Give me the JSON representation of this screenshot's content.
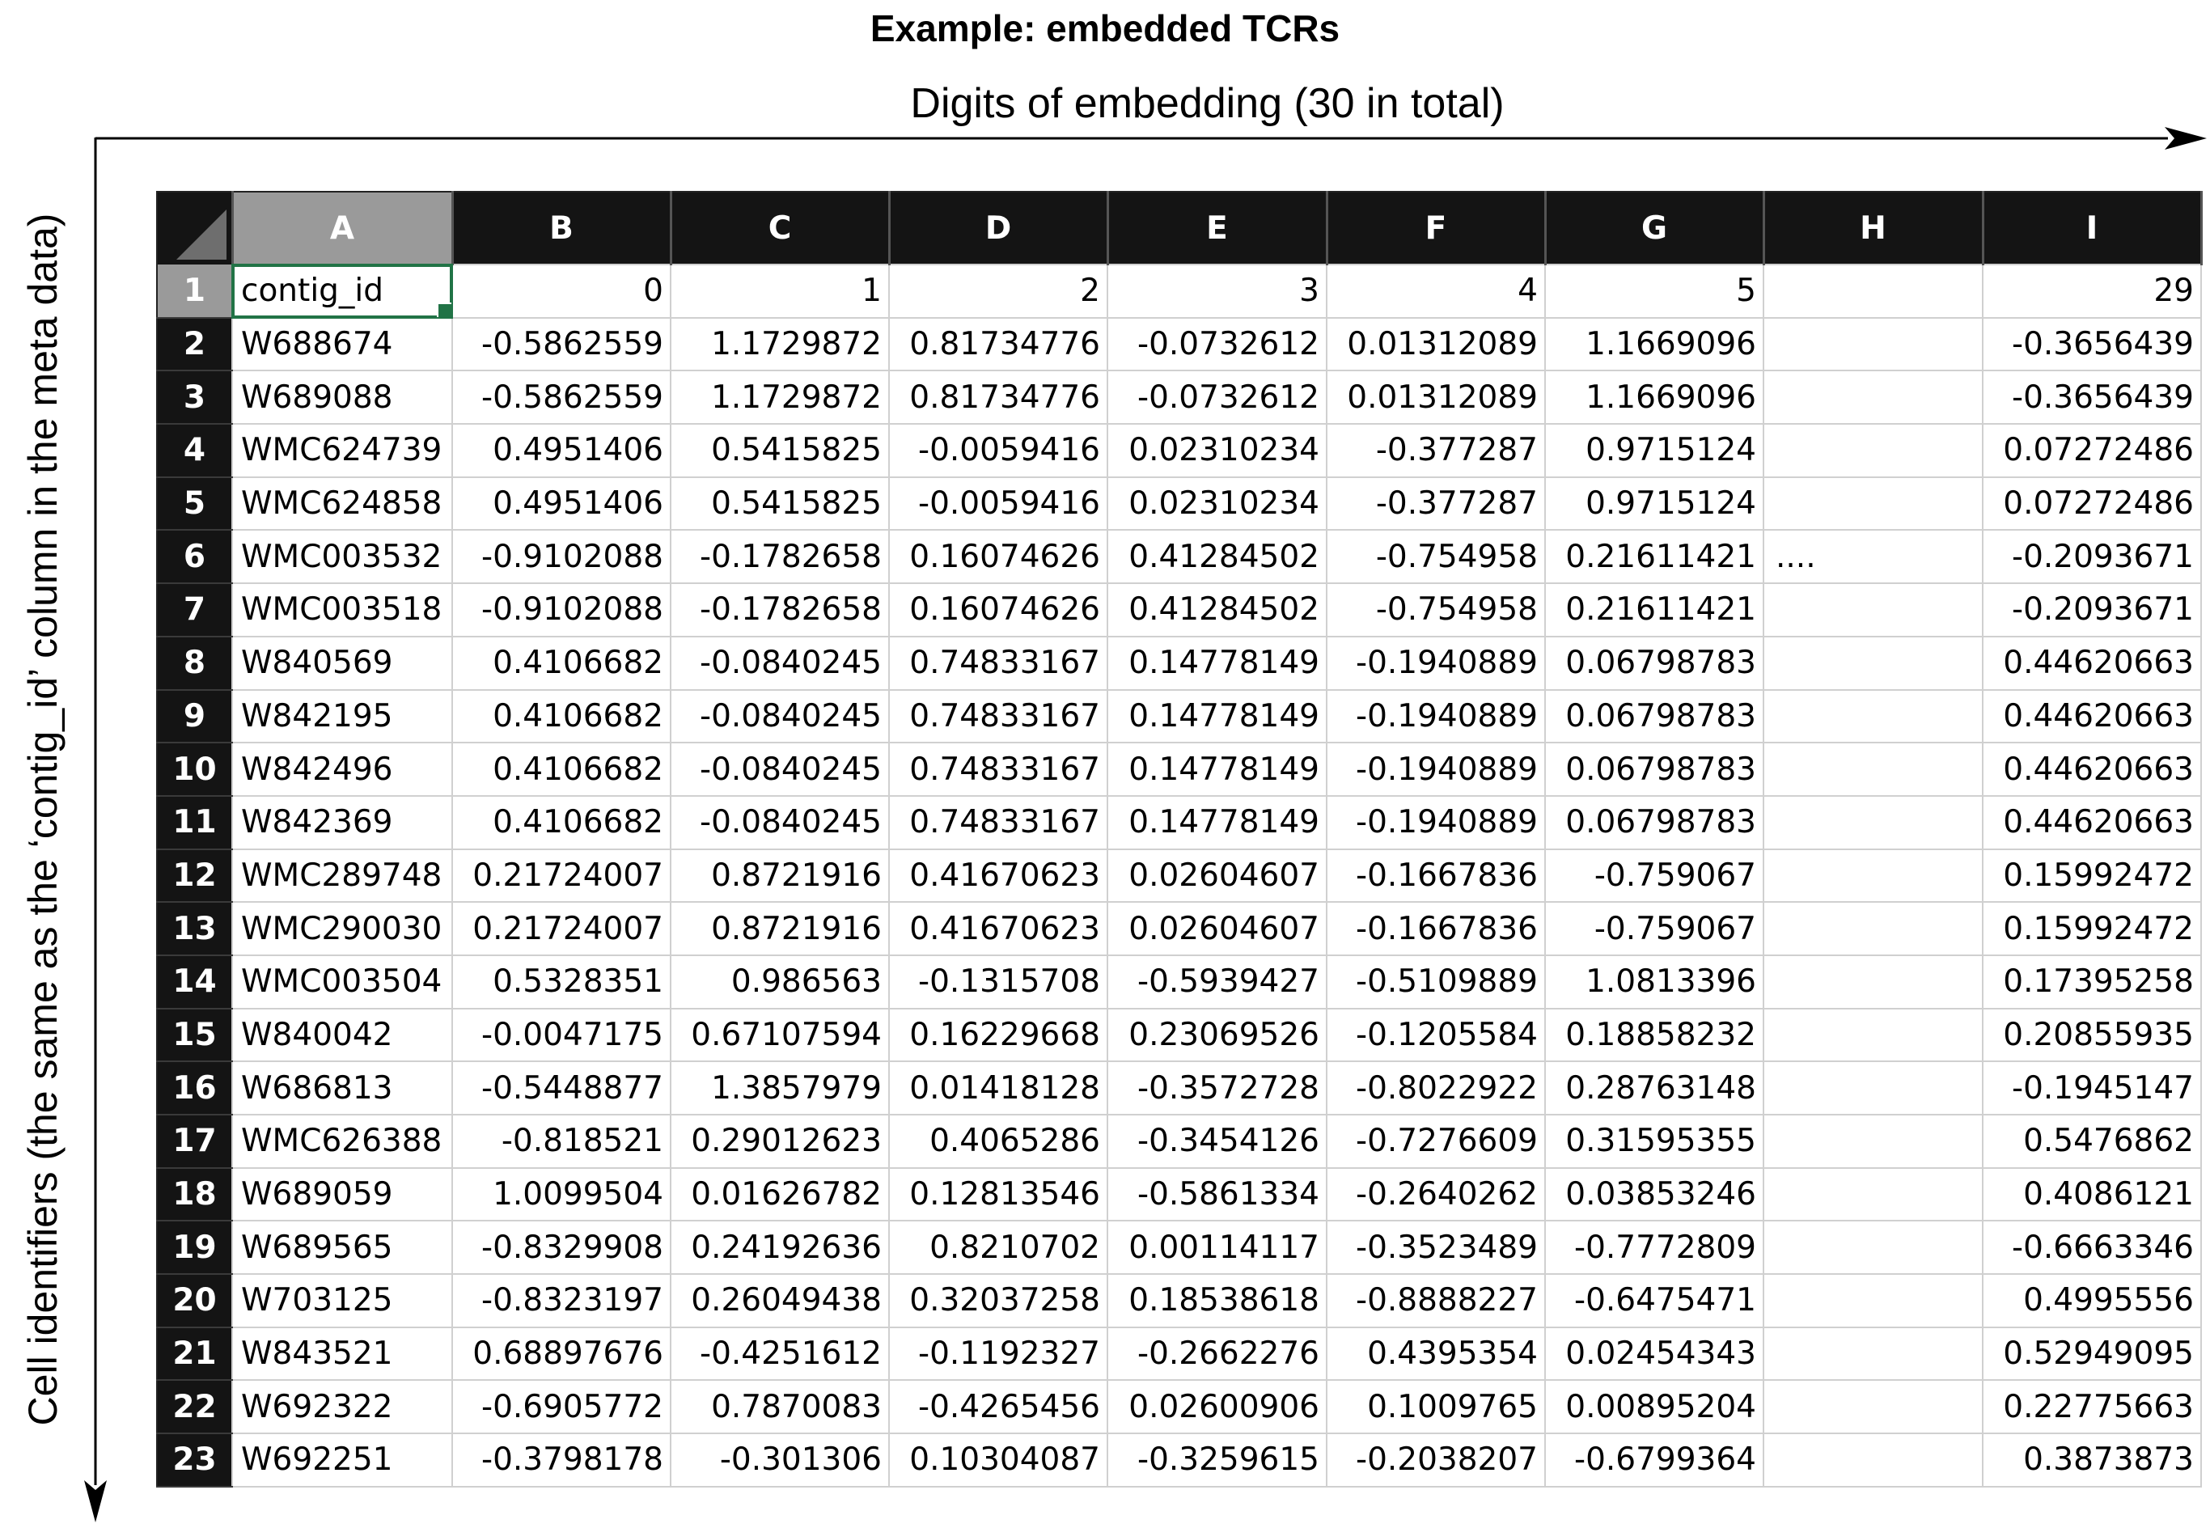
{
  "figure": {
    "title": "Example: embedded TCRs",
    "x_axis_label": "Digits of embedding (30 in total)",
    "y_axis_label": "Cell identifiers (the same as the ‘contig_id’ column in the meta data)"
  },
  "sheet": {
    "columns": [
      "A",
      "B",
      "C",
      "D",
      "E",
      "F",
      "G",
      "H",
      "I"
    ],
    "selected_column": "A",
    "active_cell": "A1",
    "colors": {
      "header_bg": "#141414",
      "header_text": "#ffffff",
      "selected_header_bg": "#9a9a9a",
      "active_border": "#217346",
      "grid": "#d0d0d0"
    },
    "rows": [
      {
        "num": "1",
        "cells": [
          "contig_id",
          "0",
          "1",
          "2",
          "3",
          "4",
          "5",
          "",
          "29"
        ]
      },
      {
        "num": "2",
        "cells": [
          "W688674",
          "-0.5862559",
          "1.1729872",
          "0.81734776",
          "-0.0732612",
          "0.01312089",
          "1.1669096",
          "",
          "-0.3656439"
        ]
      },
      {
        "num": "3",
        "cells": [
          "W689088",
          "-0.5862559",
          "1.1729872",
          "0.81734776",
          "-0.0732612",
          "0.01312089",
          "1.1669096",
          "",
          "-0.3656439"
        ]
      },
      {
        "num": "4",
        "cells": [
          "WMC624739",
          "0.4951406",
          "0.5415825",
          "-0.0059416",
          "0.02310234",
          "-0.377287",
          "0.9715124",
          "",
          "0.07272486"
        ]
      },
      {
        "num": "5",
        "cells": [
          "WMC624858",
          "0.4951406",
          "0.5415825",
          "-0.0059416",
          "0.02310234",
          "-0.377287",
          "0.9715124",
          "",
          "0.07272486"
        ]
      },
      {
        "num": "6",
        "cells": [
          "WMC003532",
          "-0.9102088",
          "-0.1782658",
          "0.16074626",
          "0.41284502",
          "-0.754958",
          "0.21611421",
          "....",
          "-0.2093671"
        ]
      },
      {
        "num": "7",
        "cells": [
          "WMC003518",
          "-0.9102088",
          "-0.1782658",
          "0.16074626",
          "0.41284502",
          "-0.754958",
          "0.21611421",
          "",
          "-0.2093671"
        ]
      },
      {
        "num": "8",
        "cells": [
          "W840569",
          "0.4106682",
          "-0.0840245",
          "0.74833167",
          "0.14778149",
          "-0.1940889",
          "0.06798783",
          "",
          "0.44620663"
        ]
      },
      {
        "num": "9",
        "cells": [
          "W842195",
          "0.4106682",
          "-0.0840245",
          "0.74833167",
          "0.14778149",
          "-0.1940889",
          "0.06798783",
          "",
          "0.44620663"
        ]
      },
      {
        "num": "10",
        "cells": [
          "W842496",
          "0.4106682",
          "-0.0840245",
          "0.74833167",
          "0.14778149",
          "-0.1940889",
          "0.06798783",
          "",
          "0.44620663"
        ]
      },
      {
        "num": "11",
        "cells": [
          "W842369",
          "0.4106682",
          "-0.0840245",
          "0.74833167",
          "0.14778149",
          "-0.1940889",
          "0.06798783",
          "",
          "0.44620663"
        ]
      },
      {
        "num": "12",
        "cells": [
          "WMC289748",
          "0.21724007",
          "0.8721916",
          "0.41670623",
          "0.02604607",
          "-0.1667836",
          "-0.759067",
          "",
          "0.15992472"
        ]
      },
      {
        "num": "13",
        "cells": [
          "WMC290030",
          "0.21724007",
          "0.8721916",
          "0.41670623",
          "0.02604607",
          "-0.1667836",
          "-0.759067",
          "",
          "0.15992472"
        ]
      },
      {
        "num": "14",
        "cells": [
          "WMC003504",
          "0.5328351",
          "0.986563",
          "-0.1315708",
          "-0.5939427",
          "-0.5109889",
          "1.0813396",
          "",
          "0.17395258"
        ]
      },
      {
        "num": "15",
        "cells": [
          "W840042",
          "-0.0047175",
          "0.67107594",
          "0.16229668",
          "0.23069526",
          "-0.1205584",
          "0.18858232",
          "",
          "0.20855935"
        ]
      },
      {
        "num": "16",
        "cells": [
          "W686813",
          "-0.5448877",
          "1.3857979",
          "0.01418128",
          "-0.3572728",
          "-0.8022922",
          "0.28763148",
          "",
          "-0.1945147"
        ]
      },
      {
        "num": "17",
        "cells": [
          "WMC626388",
          "-0.818521",
          "0.29012623",
          "0.4065286",
          "-0.3454126",
          "-0.7276609",
          "0.31595355",
          "",
          "0.5476862"
        ]
      },
      {
        "num": "18",
        "cells": [
          "W689059",
          "1.0099504",
          "0.01626782",
          "0.12813546",
          "-0.5861334",
          "-0.2640262",
          "0.03853246",
          "",
          "0.4086121"
        ]
      },
      {
        "num": "19",
        "cells": [
          "W689565",
          "-0.8329908",
          "0.24192636",
          "0.8210702",
          "0.00114117",
          "-0.3523489",
          "-0.7772809",
          "",
          "-0.6663346"
        ]
      },
      {
        "num": "20",
        "cells": [
          "W703125",
          "-0.8323197",
          "0.26049438",
          "0.32037258",
          "0.18538618",
          "-0.8888227",
          "-0.6475471",
          "",
          "0.4995556"
        ]
      },
      {
        "num": "21",
        "cells": [
          "W843521",
          "0.68897676",
          "-0.4251612",
          "-0.1192327",
          "-0.2662276",
          "0.4395354",
          "0.02454343",
          "",
          "0.52949095"
        ]
      },
      {
        "num": "22",
        "cells": [
          "W692322",
          "-0.6905772",
          "0.7870083",
          "-0.4265456",
          "0.02600906",
          "0.1009765",
          "0.00895204",
          "",
          "0.22775663"
        ]
      },
      {
        "num": "23",
        "cells": [
          "W692251",
          "-0.3798178",
          "-0.301306",
          "0.10304087",
          "-0.3259615",
          "-0.2038207",
          "-0.6799364",
          "",
          "0.3873873"
        ]
      }
    ]
  }
}
